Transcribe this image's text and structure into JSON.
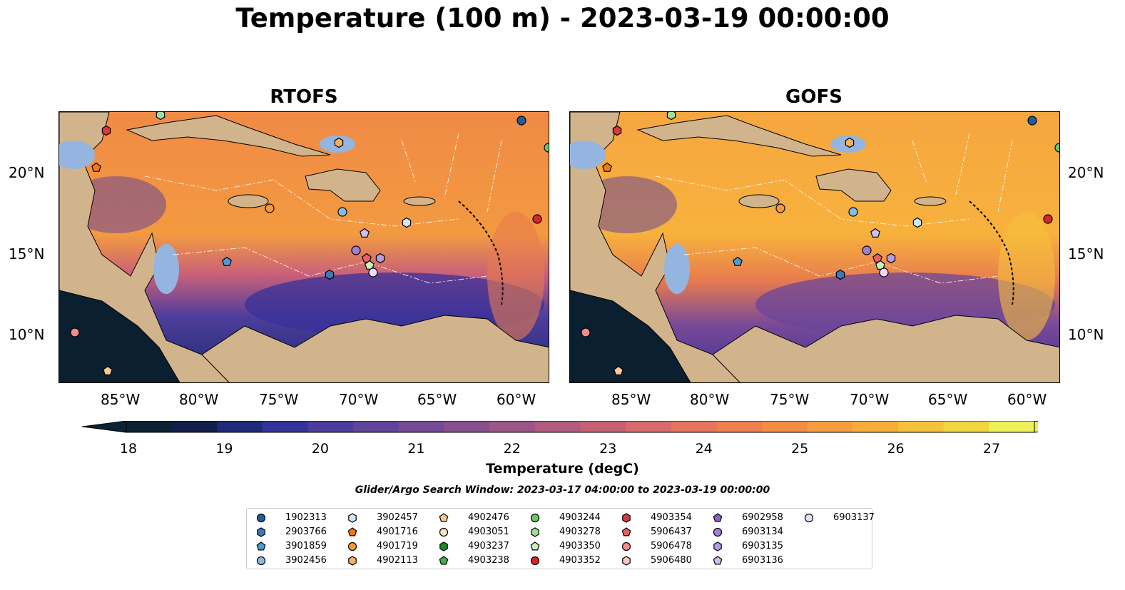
{
  "title": "Temperature (100 m) - 2023-03-19 00:00:00",
  "panels": [
    {
      "title": "RTOFS"
    },
    {
      "title": "GOFS"
    }
  ],
  "axes": {
    "lon_labels": [
      "85°W",
      "80°W",
      "75°W",
      "70°W",
      "65°W",
      "60°W"
    ],
    "lat_labels": [
      "20°N",
      "15°N",
      "10°N"
    ]
  },
  "colorbar": {
    "label": "Temperature (degC)",
    "ticks": [
      "18",
      "19",
      "20",
      "21",
      "22",
      "23",
      "24",
      "25",
      "26",
      "27"
    ],
    "colors": [
      "#0b2233",
      "#121f4a",
      "#1f2a78",
      "#35339a",
      "#4b3c9e",
      "#5f4499",
      "#744a96",
      "#884f8f",
      "#9c5587",
      "#b15b7f",
      "#c46175",
      "#d86a6b",
      "#e7745f",
      "#f07f4f",
      "#f48c44",
      "#f79c3f",
      "#f8ad3b",
      "#f6c13c",
      "#f2d640",
      "#eef05a"
    ]
  },
  "search_window": "Glider/Argo Search Window: 2023-03-17 04:00:00 to 2023-03-19 00:00:00",
  "legend": [
    {
      "id": "1902313",
      "shape": "circle",
      "color": "#1f5fa0"
    },
    {
      "id": "2903766",
      "shape": "hexagon",
      "color": "#3a7ab8"
    },
    {
      "id": "3901859",
      "shape": "pentagon",
      "color": "#4a9ed0"
    },
    {
      "id": "3902456",
      "shape": "circle",
      "color": "#86bce8"
    },
    {
      "id": "3902457",
      "shape": "hexagon",
      "color": "#cde7f7"
    },
    {
      "id": "4901716",
      "shape": "pentagon",
      "color": "#ee7a10"
    },
    {
      "id": "4901719",
      "shape": "circle",
      "color": "#f59a3a"
    },
    {
      "id": "4902113",
      "shape": "hexagon",
      "color": "#f8b060"
    },
    {
      "id": "4902476",
      "shape": "pentagon",
      "color": "#f9c995"
    },
    {
      "id": "4903051",
      "shape": "circle",
      "color": "#fde0c2"
    },
    {
      "id": "4903237",
      "shape": "hexagon",
      "color": "#1a8a2a"
    },
    {
      "id": "4903238",
      "shape": "pentagon",
      "color": "#48b048"
    },
    {
      "id": "4903244",
      "shape": "circle",
      "color": "#6cc56a"
    },
    {
      "id": "4903278",
      "shape": "hexagon",
      "color": "#a3dc98"
    },
    {
      "id": "4903350",
      "shape": "pentagon",
      "color": "#caf0c0"
    },
    {
      "id": "4903352",
      "shape": "circle",
      "color": "#d62728"
    },
    {
      "id": "4903354",
      "shape": "hexagon",
      "color": "#d63a3e"
    },
    {
      "id": "5906437",
      "shape": "pentagon",
      "color": "#ee5f5f"
    },
    {
      "id": "5906478",
      "shape": "circle",
      "color": "#f28c8c"
    },
    {
      "id": "5906480",
      "shape": "hexagon",
      "color": "#f7c6c6"
    },
    {
      "id": "6902958",
      "shape": "pentagon",
      "color": "#8b63c3"
    },
    {
      "id": "6903134",
      "shape": "circle",
      "color": "#a27fd3"
    },
    {
      "id": "6903135",
      "shape": "hexagon",
      "color": "#b79be0"
    },
    {
      "id": "6903136",
      "shape": "pentagon",
      "color": "#d2bdf0"
    },
    {
      "id": "6903137",
      "shape": "circle",
      "color": "#e8dcfa"
    }
  ],
  "map_colors": {
    "land": "#d2b48c",
    "shallow": "#93b5e0",
    "deep_cold": "#0a2030"
  }
}
